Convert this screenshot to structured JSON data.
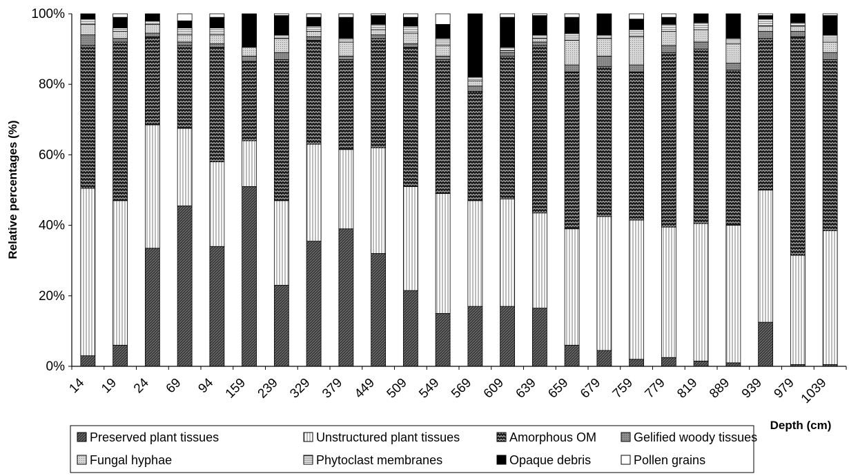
{
  "chart_data": {
    "type": "bar",
    "stacked": true,
    "normalized": true,
    "title": "",
    "xlabel": "Depth (cm)",
    "ylabel": "Relative percentages (%)",
    "ylim": [
      0,
      100
    ],
    "yticks": [
      "0%",
      "20%",
      "40%",
      "60%",
      "80%",
      "100%"
    ],
    "grid": false,
    "legend_position": "bottom",
    "categories": [
      "14",
      "19",
      "24",
      "69",
      "94",
      "159",
      "239",
      "329",
      "379",
      "449",
      "509",
      "549",
      "569",
      "609",
      "639",
      "659",
      "679",
      "759",
      "779",
      "819",
      "889",
      "939",
      "979",
      "1039"
    ],
    "series": [
      {
        "name": "Preserved plant tissues",
        "pattern": "dark-diagonal",
        "values": [
          3,
          6,
          33.5,
          45.5,
          34,
          51,
          23,
          35.5,
          39,
          32,
          21.5,
          15,
          17,
          17,
          16.5,
          6,
          4.5,
          2,
          2.5,
          1.5,
          1,
          12.5,
          0.5,
          0.5
        ]
      },
      {
        "name": "Unstructured plant tissues",
        "pattern": "vertical-lines",
        "values": [
          47.5,
          41,
          35,
          22,
          24,
          13,
          24,
          27.5,
          22.5,
          30,
          29.5,
          34,
          30,
          30.5,
          27,
          33,
          38,
          39.5,
          37,
          39,
          39,
          37.5,
          31,
          38
        ]
      },
      {
        "name": "Amorphous OM",
        "pattern": "zigzag",
        "values": [
          40.5,
          45,
          25,
          23.5,
          32.5,
          22.5,
          40,
          29.5,
          25.5,
          31,
          39.5,
          38,
          31,
          40.5,
          47.5,
          44.5,
          42.5,
          42,
          49.5,
          49.5,
          44,
          43,
          62,
          48.5
        ]
      },
      {
        "name": "Gelified woody tissues",
        "pattern": "gray-dots",
        "values": [
          3,
          1,
          1,
          1,
          1,
          1.5,
          2,
          1,
          1,
          1,
          1,
          1,
          1.5,
          1,
          1,
          2,
          3,
          2,
          2,
          2,
          2,
          2,
          1.5,
          2
        ]
      },
      {
        "name": "Fungal hyphae",
        "pattern": "light-dots",
        "values": [
          3,
          2,
          2.5,
          2,
          2.5,
          2.5,
          4,
          1.5,
          4,
          1.5,
          3,
          3,
          1.5,
          0.5,
          1,
          7,
          5,
          8,
          4,
          3.5,
          5.5,
          1.5,
          1.5,
          3
        ]
      },
      {
        "name": "Phytoclast membranes",
        "pattern": "horizontal-lines",
        "values": [
          1.5,
          1,
          1,
          2,
          2,
          0,
          1,
          1.5,
          1,
          1.5,
          2,
          2,
          1,
          1,
          1,
          2,
          1,
          2,
          2,
          2,
          1.5,
          2,
          1,
          2
        ]
      },
      {
        "name": "Opaque debris",
        "pattern": "black",
        "values": [
          1.5,
          3,
          2,
          2,
          3,
          9.5,
          5.5,
          2.5,
          6,
          2.5,
          2.5,
          4,
          18,
          8.5,
          5.5,
          4.5,
          6,
          3,
          2,
          2.5,
          7,
          1,
          2.5,
          5.5
        ]
      },
      {
        "name": "Pollen grains",
        "pattern": "white",
        "values": [
          0,
          1,
          0,
          2,
          1,
          0,
          0.5,
          1,
          1,
          0.5,
          1,
          3,
          0,
          1,
          0.5,
          1,
          0,
          1.5,
          1,
          0,
          0,
          0.5,
          0,
          0.5
        ]
      }
    ]
  }
}
